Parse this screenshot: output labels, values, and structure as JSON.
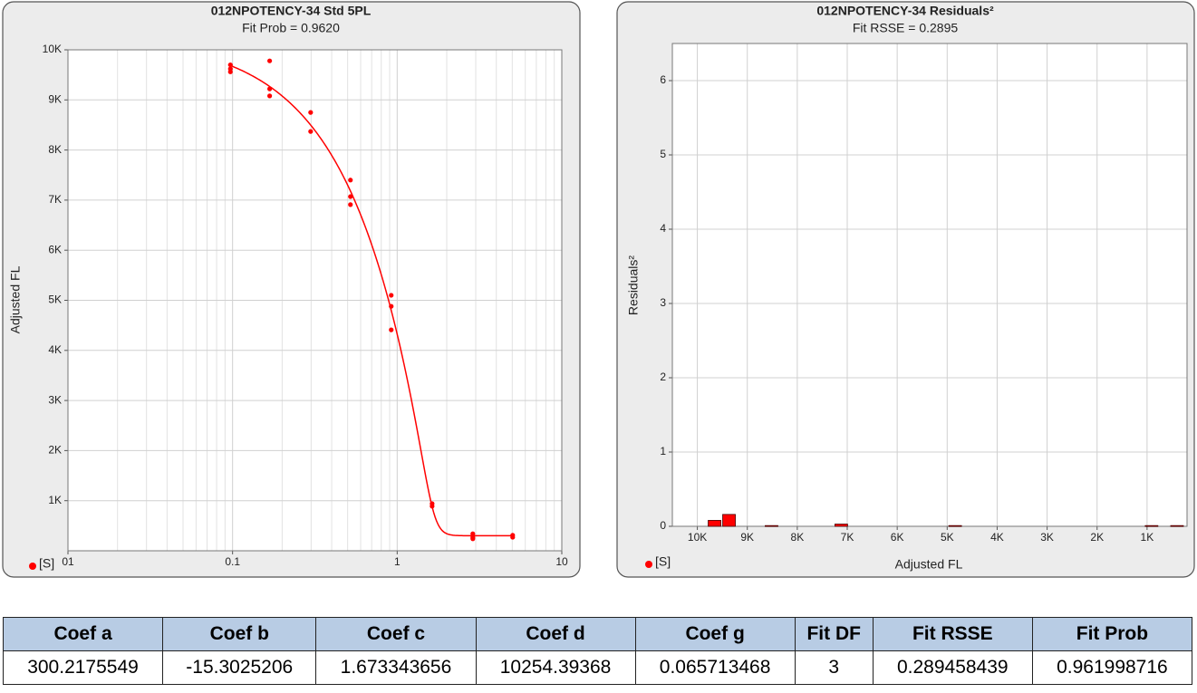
{
  "chart_data": [
    {
      "type": "scatter",
      "title": "012NPOTENCY-34 Std 5PL",
      "subtitle": "Fit Prob = 0.9620",
      "ylabel": "Adjusted FL",
      "xscale": "log",
      "xlim": [
        0.01,
        10
      ],
      "xticks": [
        {
          "value": 0.01,
          "label": "01"
        },
        0.1,
        1,
        10
      ],
      "ylim": [
        0,
        10000
      ],
      "yticks": [
        {
          "value": 1000,
          "label": "1K"
        },
        {
          "value": 2000,
          "label": "2K"
        },
        {
          "value": 3000,
          "label": "3K"
        },
        {
          "value": 4000,
          "label": "4K"
        },
        {
          "value": 5000,
          "label": "5K"
        },
        {
          "value": 6000,
          "label": "6K"
        },
        {
          "value": 7000,
          "label": "7K"
        },
        {
          "value": 8000,
          "label": "8K"
        },
        {
          "value": 9000,
          "label": "9K"
        },
        {
          "value": 10000,
          "label": "10K"
        }
      ],
      "grid": true,
      "legend": "lower left",
      "series": [
        {
          "name": "[S]",
          "color": "#ff0000",
          "x": [
            0.097,
            0.097,
            0.097,
            0.168,
            0.168,
            0.168,
            0.298,
            0.298,
            0.52,
            0.52,
            0.52,
            0.92,
            0.92,
            0.92,
            1.63,
            1.63,
            2.88,
            2.88,
            2.88,
            5.03,
            5.03
          ],
          "values": [
            9700,
            9620,
            9560,
            9780,
            9220,
            9080,
            8750,
            8370,
            7400,
            7070,
            6910,
            5100,
            4880,
            4410,
            940,
            890,
            340,
            270,
            240,
            310,
            270
          ]
        }
      ]
    },
    {
      "type": "bar",
      "title": "012NPOTENCY-34 Residuals²",
      "subtitle": "Fit RSSE = 0.2895",
      "ylabel": "Residuals²",
      "xlabel": "Adjusted FL",
      "xlim": [
        10500,
        200
      ],
      "xticks": [
        {
          "value": 10000,
          "label": "10K"
        },
        {
          "value": 9000,
          "label": "9K"
        },
        {
          "value": 8000,
          "label": "8K"
        },
        {
          "value": 7000,
          "label": "7K"
        },
        {
          "value": 6000,
          "label": "6K"
        },
        {
          "value": 5000,
          "label": "5K"
        },
        {
          "value": 4000,
          "label": "4K"
        },
        {
          "value": 3000,
          "label": "3K"
        },
        {
          "value": 2000,
          "label": "2K"
        },
        {
          "value": 1000,
          "label": "1K"
        }
      ],
      "ylim": [
        0,
        6.5
      ],
      "yticks": [
        0,
        1,
        2,
        3,
        4,
        5,
        6
      ],
      "grid": true,
      "legend": "lower left",
      "series": [
        {
          "name": "[S]",
          "color": "#ff0000",
          "x": [
            9656,
            9366,
            8515,
            7120,
            4840,
            910,
            400
          ],
          "values": [
            0.08,
            0.16,
            0.01,
            0.03,
            0.01,
            0.01,
            0.01
          ]
        }
      ]
    }
  ],
  "table": {
    "header": [
      "Coef a",
      "Coef b",
      "Coef c",
      "Coef d",
      "Coef g",
      "Fit DF",
      "Fit RSSE",
      "Fit Prob"
    ],
    "rows": [
      [
        "300.2175549",
        "-15.3025206",
        "1.673343656",
        "10254.39368",
        "0.065713468",
        "3",
        "0.289458439",
        "0.961998716"
      ]
    ]
  }
}
